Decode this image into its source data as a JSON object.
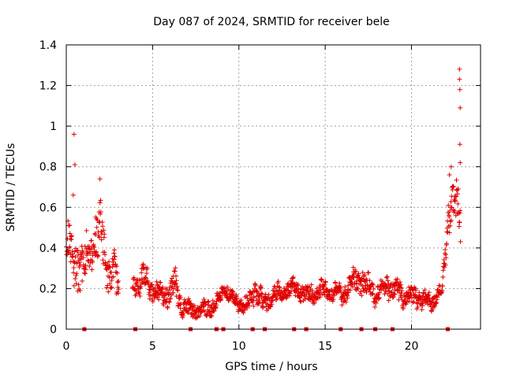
{
  "chart_data": {
    "type": "scatter",
    "title": "Day 087 of 2024, SRMTID for receiver bele",
    "xlabel": "GPS time / hours",
    "ylabel": "SRMTID / TECUs",
    "xlim": [
      0,
      24
    ],
    "ylim": [
      0,
      1.4
    ],
    "grid": true,
    "xticks": [
      0,
      5,
      10,
      15,
      20
    ],
    "xtick_labels": [
      "0",
      "5",
      "10",
      "15",
      "20"
    ],
    "yticks": [
      0,
      0.2,
      0.4,
      0.6,
      0.8,
      1,
      1.2,
      1.4
    ],
    "ytick_labels": [
      "0",
      "0.2",
      "0.4",
      "0.6",
      "0.8",
      "1",
      "1.2",
      "1.4"
    ],
    "colors": {
      "points": "#e00000",
      "grid": "#a0a0a0",
      "axis": "#000000"
    },
    "marker": "plus",
    "envelope": [
      {
        "x": 0.0,
        "base": 0.42,
        "spread": 0.14
      },
      {
        "x": 0.5,
        "base": 0.35,
        "spread": 0.16
      },
      {
        "x": 1.0,
        "base": 0.28,
        "spread": 0.14
      },
      {
        "x": 1.5,
        "base": 0.4,
        "spread": 0.14
      },
      {
        "x": 2.0,
        "base": 0.48,
        "spread": 0.14
      },
      {
        "x": 2.5,
        "base": 0.28,
        "spread": 0.12
      },
      {
        "x": 3.0,
        "base": 0.24,
        "spread": 0.12
      },
      {
        "x": 4.0,
        "base": 0.22,
        "spread": 0.06
      },
      {
        "x": 4.6,
        "base": 0.25,
        "spread": 0.08
      },
      {
        "x": 5.0,
        "base": 0.18,
        "spread": 0.06
      },
      {
        "x": 5.5,
        "base": 0.17,
        "spread": 0.06
      },
      {
        "x": 6.0,
        "base": 0.17,
        "spread": 0.06
      },
      {
        "x": 6.3,
        "base": 0.22,
        "spread": 0.08
      },
      {
        "x": 6.7,
        "base": 0.11,
        "spread": 0.05
      },
      {
        "x": 7.5,
        "base": 0.09,
        "spread": 0.04
      },
      {
        "x": 8.2,
        "base": 0.1,
        "spread": 0.05
      },
      {
        "x": 8.6,
        "base": 0.12,
        "spread": 0.04
      },
      {
        "x": 9.2,
        "base": 0.2,
        "spread": 0.04
      },
      {
        "x": 9.8,
        "base": 0.13,
        "spread": 0.04
      },
      {
        "x": 10.5,
        "base": 0.12,
        "spread": 0.04
      },
      {
        "x": 11.0,
        "base": 0.2,
        "spread": 0.08
      },
      {
        "x": 11.4,
        "base": 0.12,
        "spread": 0.06
      },
      {
        "x": 12.0,
        "base": 0.17,
        "spread": 0.05
      },
      {
        "x": 13.0,
        "base": 0.2,
        "spread": 0.05
      },
      {
        "x": 14.0,
        "base": 0.17,
        "spread": 0.05
      },
      {
        "x": 15.0,
        "base": 0.19,
        "spread": 0.05
      },
      {
        "x": 16.0,
        "base": 0.17,
        "spread": 0.05
      },
      {
        "x": 16.8,
        "base": 0.25,
        "spread": 0.07
      },
      {
        "x": 17.5,
        "base": 0.2,
        "spread": 0.07
      },
      {
        "x": 18.0,
        "base": 0.17,
        "spread": 0.05
      },
      {
        "x": 18.6,
        "base": 0.22,
        "spread": 0.06
      },
      {
        "x": 19.5,
        "base": 0.17,
        "spread": 0.06
      },
      {
        "x": 20.5,
        "base": 0.15,
        "spread": 0.05
      },
      {
        "x": 21.2,
        "base": 0.13,
        "spread": 0.04
      },
      {
        "x": 21.8,
        "base": 0.2,
        "spread": 0.04
      },
      {
        "x": 22.2,
        "base": 0.62,
        "spread": 0.12
      },
      {
        "x": 22.8,
        "base": 0.55,
        "spread": 0.15
      }
    ],
    "sample_ranges": [
      [
        0,
        3.05
      ],
      [
        3.85,
        22.85
      ]
    ],
    "sample_step": 0.0167,
    "outliers": [
      {
        "x": 0.45,
        "y": 0.96
      },
      {
        "x": 0.5,
        "y": 0.81
      },
      {
        "x": 0.4,
        "y": 0.66
      },
      {
        "x": 1.95,
        "y": 0.74
      },
      {
        "x": 22.78,
        "y": 1.28
      },
      {
        "x": 22.78,
        "y": 1.23
      },
      {
        "x": 22.8,
        "y": 1.18
      },
      {
        "x": 22.82,
        "y": 1.09
      },
      {
        "x": 22.8,
        "y": 0.91
      },
      {
        "x": 22.82,
        "y": 0.82
      },
      {
        "x": 22.3,
        "y": 0.8
      },
      {
        "x": 22.2,
        "y": 0.76
      }
    ],
    "gap_markers_x": [
      1.05,
      4.0,
      7.2,
      8.7,
      9.1,
      10.8,
      11.5,
      13.2,
      13.9,
      15.9,
      17.1,
      17.9,
      18.9,
      22.1
    ]
  }
}
